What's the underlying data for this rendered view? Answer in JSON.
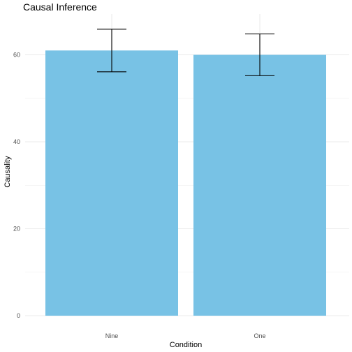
{
  "chart_data": {
    "type": "bar",
    "title": "Causal Inference",
    "xlabel": "Condition",
    "ylabel": "Causality",
    "categories": [
      "Nine",
      "One"
    ],
    "values": [
      61,
      60
    ],
    "error_bars": {
      "lower": [
        56.1,
        55.2
      ],
      "upper": [
        65.9,
        64.8
      ]
    },
    "ylim": [
      0,
      69
    ],
    "yticks": [
      0,
      20,
      40,
      60
    ],
    "grid": true,
    "bar_color": "#78C2E5",
    "error_bar_color": "#000000",
    "gridline_color": "#ebebeb"
  }
}
